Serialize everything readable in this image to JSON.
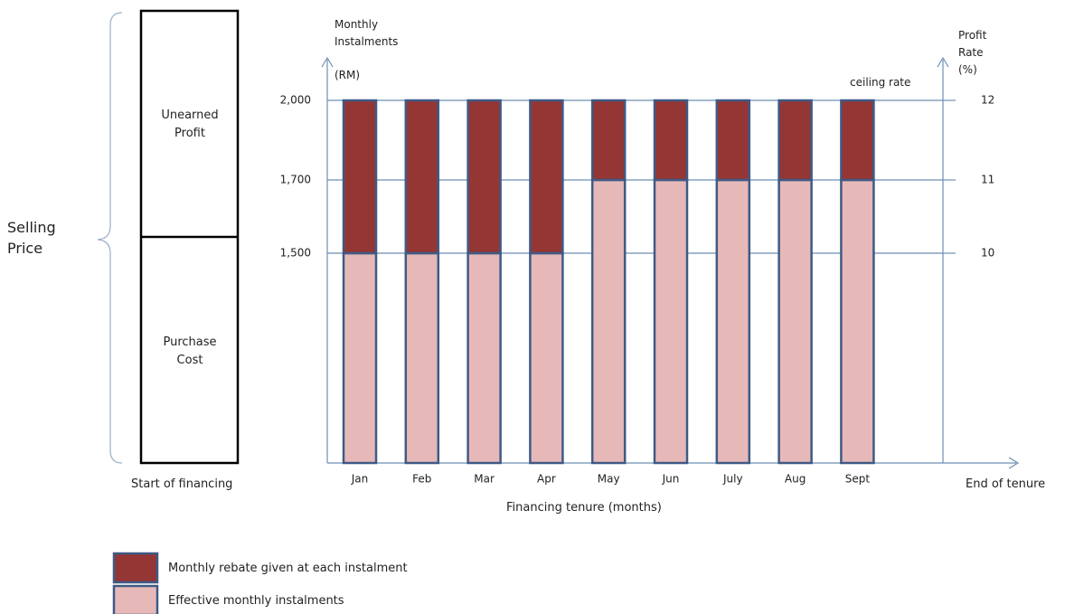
{
  "chart_data": {
    "type": "stacked_bar",
    "y_label": "Monthly Instalments",
    "y_unit": "(RM)",
    "y2_label": "Profit Rate",
    "y2_unit": "(%)",
    "x_label": "Financing tenure (months)",
    "categories": [
      "Jan",
      "Feb",
      "Mar",
      "Apr",
      "May",
      "Jun",
      "July",
      "Aug",
      "Sept"
    ],
    "series": [
      {
        "name": "Effective monthly instalments",
        "color": "#e6b9b8",
        "values": [
          1500,
          1500,
          1500,
          1500,
          1700,
          1700,
          1700,
          1700,
          1700
        ]
      },
      {
        "name": "Monthly rebate given at each instalment",
        "color": "#943634",
        "values": [
          500,
          500,
          500,
          500,
          300,
          300,
          300,
          300,
          300
        ]
      }
    ],
    "ylim": [
      0,
      2000
    ],
    "yticks": [
      {
        "value": 1500,
        "label": "1,500"
      },
      {
        "value": 1700,
        "label": "1,700"
      },
      {
        "value": 2000,
        "label": "2,000"
      }
    ],
    "y2lim": [
      0,
      12
    ],
    "y2ticks": [
      10,
      11,
      12
    ],
    "grid": true,
    "annotations": {
      "ceiling": "ceiling rate",
      "start": "Start of financing",
      "end": "End of tenure"
    }
  },
  "diagram": {
    "label": "Selling Price",
    "top": "Unearned Profit",
    "bottom": "Purchase Cost"
  }
}
